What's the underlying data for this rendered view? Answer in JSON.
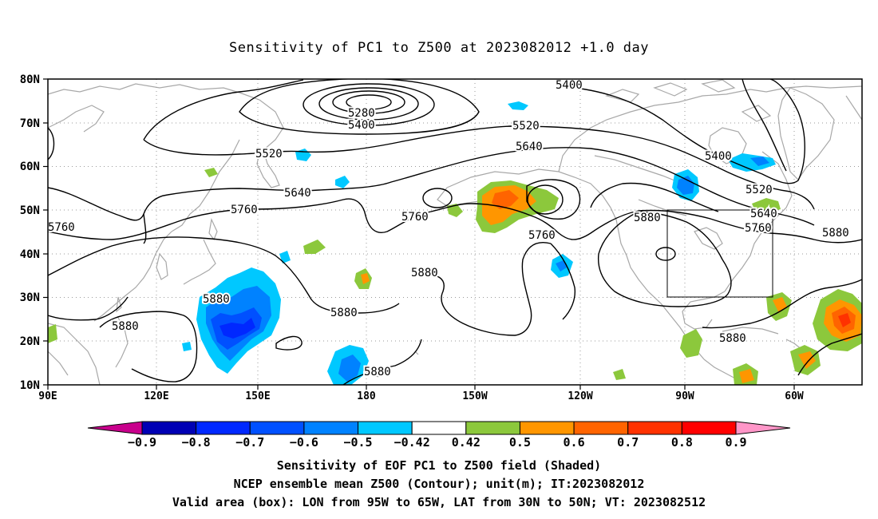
{
  "title": "Sensitivity of PC1 to Z500 at 2023082012 +1.0 day",
  "lat_labels": [
    "80N",
    "70N",
    "60N",
    "50N",
    "40N",
    "30N",
    "20N",
    "10N"
  ],
  "lon_labels": [
    "90E",
    "120E",
    "150E",
    "180",
    "150W",
    "120W",
    "90W",
    "60W"
  ],
  "contour_labels": [
    {
      "text": "5280"
    },
    {
      "text": "5400"
    },
    {
      "text": "5400"
    },
    {
      "text": "5400"
    },
    {
      "text": "5520"
    },
    {
      "text": "5520"
    },
    {
      "text": "5520"
    },
    {
      "text": "5640"
    },
    {
      "text": "5640"
    },
    {
      "text": "5640"
    },
    {
      "text": "5760"
    },
    {
      "text": "5760"
    },
    {
      "text": "5760"
    },
    {
      "text": "5760"
    },
    {
      "text": "5760"
    },
    {
      "text": "5880"
    },
    {
      "text": "5880"
    },
    {
      "text": "5880"
    },
    {
      "text": "5880"
    },
    {
      "text": "5880"
    },
    {
      "text": "5880"
    },
    {
      "text": "5880"
    },
    {
      "text": "5880"
    }
  ],
  "colorbar": {
    "labels": [
      "-0.9",
      "-0.8",
      "-0.7",
      "-0.6",
      "-0.5",
      "-0.42",
      "0.42",
      "0.5",
      "0.6",
      "0.7",
      "0.8",
      "0.9"
    ],
    "colors": [
      "#c8008c",
      "#0000b4",
      "#0028ff",
      "#0050ff",
      "#0082ff",
      "#00c8ff",
      "#ffffff",
      "#8cc83c",
      "#ff9600",
      "#ff6400",
      "#ff3200",
      "#ff0000",
      "#ff96c8"
    ]
  },
  "caption_lines": [
    "Sensitivity of EOF PC1 to Z500 field (Shaded)",
    "NCEP ensemble mean Z500 (Contour); unit(m); IT:2023082012",
    "Valid area (box): LON from 95W to 65W, LAT from 30N to 50N; VT: 2023082512"
  ]
}
